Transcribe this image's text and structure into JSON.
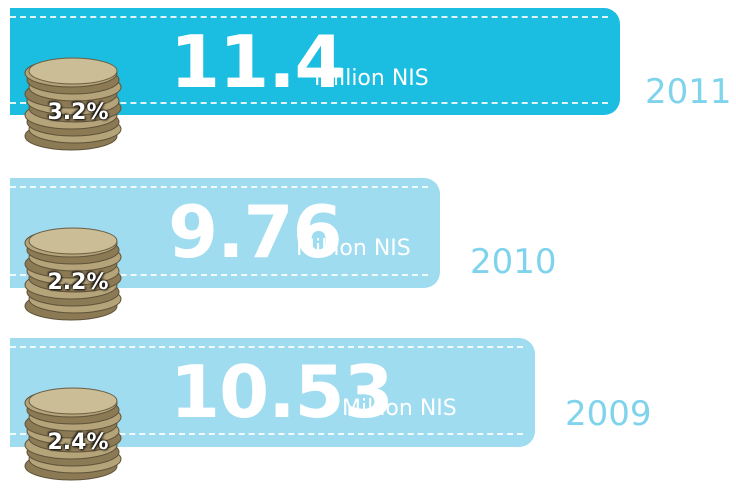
{
  "items": [
    {
      "value": 11.4,
      "unit": "Million NIS",
      "percent": "3.2%",
      "year": 2011
    },
    {
      "value": 9.76,
      "unit": "Million NIS",
      "percent": "2.2%",
      "year": 2010
    },
    {
      "value": 10.53,
      "unit": "Million NIS",
      "percent": "2.4%",
      "year": 2009
    }
  ]
}
